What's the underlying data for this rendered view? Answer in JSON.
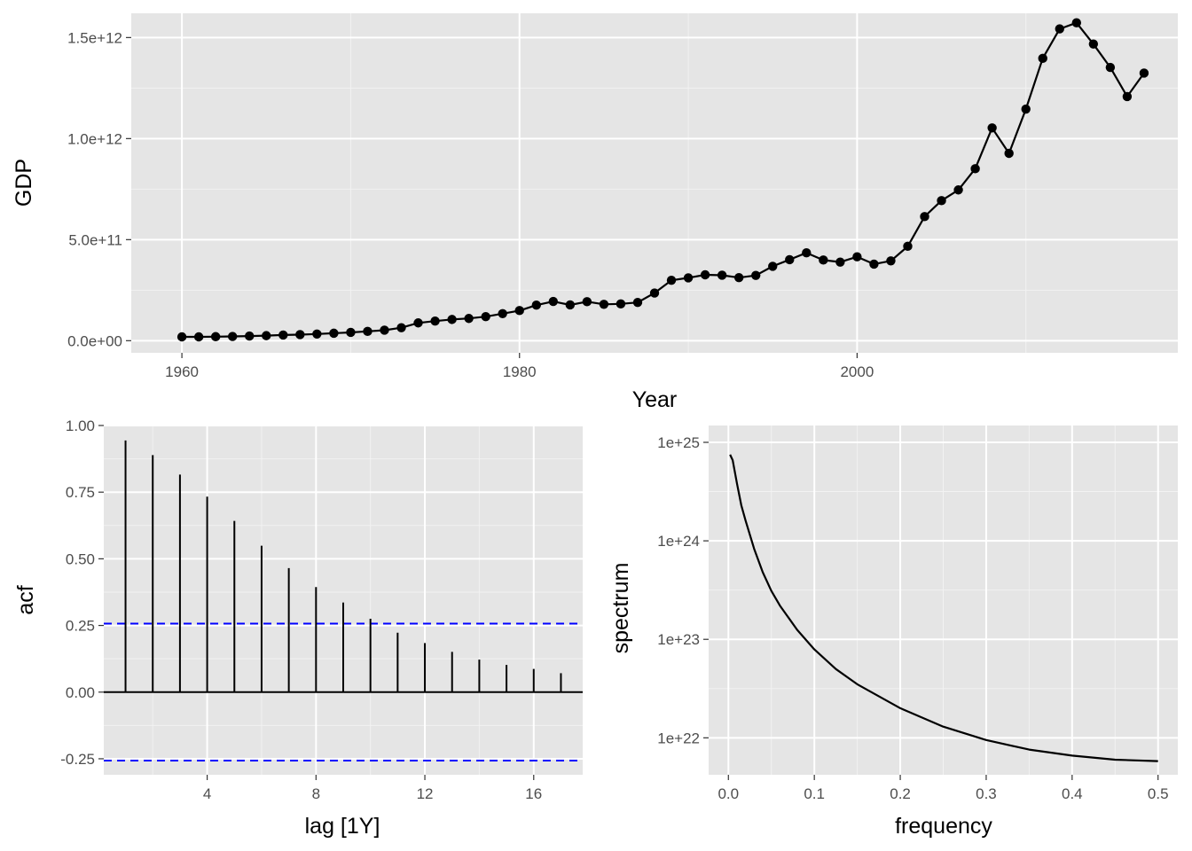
{
  "chart_data": [
    {
      "type": "line",
      "xlabel": "Year",
      "ylabel": "GDP",
      "xlim": [
        1957,
        2019
      ],
      "ylim": [
        -60000000000.0,
        1620000000000.0
      ],
      "xticks": [
        1960,
        1980,
        2000
      ],
      "xtick_labels": [
        "1960",
        "1980",
        "2000"
      ],
      "yticks": [
        0,
        500000000000.0,
        1000000000000.0,
        1500000000000.0
      ],
      "ytick_labels": [
        "0.0e+00",
        "5.0e+11",
        "1.0e+12",
        "1.5e+12"
      ],
      "grid": true,
      "color": "#000000",
      "x": [
        1960,
        1961,
        1962,
        1963,
        1964,
        1965,
        1966,
        1967,
        1968,
        1969,
        1970,
        1971,
        1972,
        1973,
        1974,
        1975,
        1976,
        1977,
        1978,
        1979,
        1980,
        1981,
        1982,
        1983,
        1984,
        1985,
        1986,
        1987,
        1988,
        1989,
        1990,
        1991,
        1992,
        1993,
        1994,
        1995,
        1996,
        1997,
        1998,
        1999,
        2000,
        2001,
        2002,
        2003,
        2004,
        2005,
        2006,
        2007,
        2008,
        2009,
        2010,
        2011,
        2012,
        2013,
        2014,
        2015,
        2016,
        2017
      ],
      "y": [
        19000000000.0,
        19000000000.0,
        20000000000.0,
        21000000000.0,
        23000000000.0,
        25000000000.0,
        28000000000.0,
        30000000000.0,
        33000000000.0,
        37000000000.0,
        41000000000.0,
        46000000000.0,
        52000000000.0,
        64000000000.0,
        88000000000.0,
        97000000000.0,
        105000000000.0,
        110000000000.0,
        119000000000.0,
        134000000000.0,
        149000000000.0,
        176000000000.0,
        194000000000.0,
        177000000000.0,
        193000000000.0,
        180000000000.0,
        182000000000.0,
        189000000000.0,
        236000000000.0,
        299000000000.0,
        311000000000.0,
        326000000000.0,
        324000000000.0,
        312000000000.0,
        323000000000.0,
        368000000000.0,
        401000000000.0,
        435000000000.0,
        399000000000.0,
        389000000000.0,
        415000000000.0,
        379000000000.0,
        395000000000.0,
        467000000000.0,
        614000000000.0,
        693000000000.0,
        746000000000.0,
        851000000000.0,
        1053000000000.0,
        927000000000.0,
        1146000000000.0,
        1397000000000.0,
        1543000000000.0,
        1573000000000.0,
        1468000000000.0,
        1352000000000.0,
        1208000000000.0,
        1324000000000.0
      ]
    },
    {
      "type": "bar",
      "xlabel": "lag [1Y]",
      "ylabel": "acf",
      "xlim": [
        0.2,
        17.8
      ],
      "ylim": [
        -0.31,
        1.0
      ],
      "xticks": [
        4,
        8,
        12,
        16
      ],
      "xtick_labels": [
        "4",
        "8",
        "12",
        "16"
      ],
      "yticks": [
        -0.25,
        0,
        0.25,
        0.5,
        0.75,
        1.0
      ],
      "ytick_labels": [
        "-0.25",
        "0.00",
        "0.25",
        "0.50",
        "0.75",
        "1.00"
      ],
      "grid": true,
      "lags": [
        1,
        2,
        3,
        4,
        5,
        6,
        7,
        8,
        9,
        10,
        11,
        12,
        13,
        14,
        15,
        16,
        17
      ],
      "values": [
        0.944,
        0.889,
        0.816,
        0.733,
        0.642,
        0.549,
        0.465,
        0.394,
        0.336,
        0.275,
        0.223,
        0.184,
        0.151,
        0.122,
        0.102,
        0.087,
        0.071
      ],
      "confidence_bound": 0.257,
      "ci_color": "#0000ff"
    },
    {
      "type": "line",
      "xlabel": "frequency",
      "ylabel": "spectrum",
      "xlim": [
        -0.023,
        0.523
      ],
      "ylim_log10": [
        21.625,
        25.0
      ],
      "log_y": true,
      "xticks": [
        0,
        0.1,
        0.2,
        0.3,
        0.4,
        0.5
      ],
      "xtick_labels": [
        "0.0",
        "0.1",
        "0.2",
        "0.3",
        "0.4",
        "0.5"
      ],
      "yticks_log10": [
        22,
        23,
        24,
        25
      ],
      "ytick_labels": [
        "1e+22",
        "1e+23",
        "1e+24",
        "1e+25"
      ],
      "grid": true,
      "x": [
        0.002,
        0.005,
        0.01,
        0.015,
        0.02,
        0.03,
        0.04,
        0.05,
        0.06,
        0.08,
        0.1,
        0.125,
        0.15,
        0.2,
        0.25,
        0.3,
        0.35,
        0.4,
        0.45,
        0.5
      ],
      "y": [
        7.5e+24,
        6.6e+24,
        3.8e+24,
        2.3e+24,
        1.6e+24,
        8.3e+23,
        4.8e+23,
        3.1e+23,
        2.2e+23,
        1.25e+23,
        7.9e+22,
        5e+22,
        3.5e+22,
        2e+22,
        1.3e+22,
        9.5e+21,
        7.6e+21,
        6.6e+21,
        6e+21,
        5.8e+21
      ]
    }
  ]
}
